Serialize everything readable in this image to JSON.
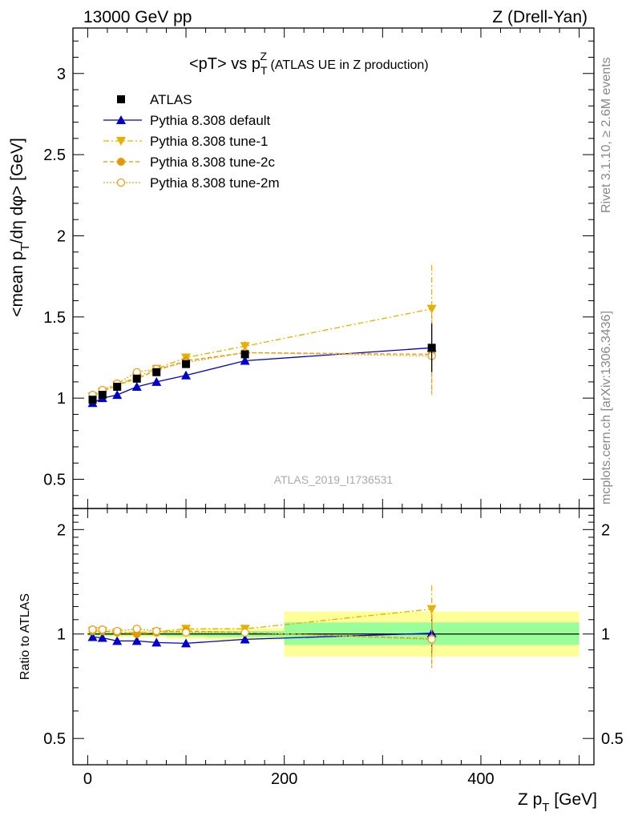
{
  "header": {
    "left": "13000 GeV pp",
    "right": "Z (Drell-Yan)"
  },
  "plot_title": {
    "main": "<pT> vs p",
    "sup": "Z",
    "sub": "T",
    "suffix": " (ATLAS UE in Z production)"
  },
  "side_labels": {
    "rivet": "Rivet 3.1.10, ≥ 2.6M events",
    "mcplots": "mcplots.cern.ch [arXiv:1306.3436]"
  },
  "watermark": "ATLAS_2019_I1736531",
  "axes": {
    "ylabel_main": "<mean p_T/dη dφ> [GeV]",
    "ylabel_main_parts": {
      "a": "<mean p",
      "sub": "T",
      "b": "/dη dφ> [GeV]"
    },
    "ylabel_ratio": "Ratio to ATLAS",
    "xlabel": "Z p_T [GeV]",
    "xlabel_parts": {
      "a": "Z p",
      "sub": "T",
      "b": " [GeV]"
    }
  },
  "colors": {
    "atlas": "#000000",
    "default": "#0000cc",
    "tune1": "#e6b000",
    "tune2c": "#e09a00",
    "tune2m": "#e8a020",
    "band_outer": "#ffff99",
    "band_inner": "#99ff99"
  },
  "chart_data": [
    {
      "type": "line",
      "panel": "main",
      "xlim": [
        -15,
        515
      ],
      "ylim": [
        0.32,
        3.28
      ],
      "log_y": false,
      "yticks": [
        0.5,
        1,
        1.5,
        2,
        2.5,
        3
      ],
      "ytick_labels": [
        "0.5",
        "1",
        "1.5",
        "2",
        "2.5",
        "3"
      ],
      "legend_position": "top-left",
      "series": [
        {
          "name": "ATLAS",
          "style": "square",
          "x": [
            5,
            15,
            30,
            50,
            70,
            100,
            160,
            350
          ],
          "y": [
            0.99,
            1.02,
            1.07,
            1.12,
            1.16,
            1.21,
            1.27,
            1.31
          ],
          "yerr": [
            0.01,
            0.01,
            0.01,
            0.01,
            0.01,
            0.01,
            0.02,
            0.15
          ]
        },
        {
          "name": "Pythia 8.308 default",
          "style": "triangle-up-solid",
          "x": [
            5,
            15,
            30,
            50,
            70,
            100,
            160,
            350
          ],
          "y": [
            0.97,
            1.0,
            1.02,
            1.07,
            1.1,
            1.14,
            1.23,
            1.31
          ],
          "yerr": [
            0.01,
            0.01,
            0.01,
            0.01,
            0.01,
            0.01,
            0.02,
            0.15
          ]
        },
        {
          "name": "Pythia 8.308 tune-1",
          "style": "triangle-down-dashdot",
          "x": [
            5,
            15,
            30,
            50,
            70,
            100,
            160,
            350
          ],
          "y": [
            1.01,
            1.04,
            1.08,
            1.13,
            1.18,
            1.25,
            1.32,
            1.55
          ],
          "yerr": [
            0.01,
            0.01,
            0.01,
            0.01,
            0.01,
            0.02,
            0.03,
            0.27
          ]
        },
        {
          "name": "Pythia 8.308 tune-2c",
          "style": "circle-solid-dashed",
          "x": [
            5,
            15,
            30,
            50,
            70,
            100,
            160,
            350
          ],
          "y": [
            1.01,
            1.04,
            1.08,
            1.12,
            1.17,
            1.23,
            1.28,
            1.27
          ],
          "yerr": [
            0.01,
            0.01,
            0.01,
            0.01,
            0.01,
            0.02,
            0.02,
            0.24
          ]
        },
        {
          "name": "Pythia 8.308 tune-2m",
          "style": "circle-open-dotted",
          "x": [
            5,
            15,
            30,
            50,
            70,
            100,
            160,
            350
          ],
          "y": [
            1.02,
            1.05,
            1.09,
            1.16,
            1.18,
            1.22,
            1.28,
            1.26
          ],
          "yerr": [
            0.01,
            0.01,
            0.01,
            0.01,
            0.01,
            0.02,
            0.02,
            0.24
          ]
        }
      ]
    },
    {
      "type": "line",
      "panel": "ratio",
      "xlim": [
        -15,
        515
      ],
      "ylim": [
        0.42,
        2.3
      ],
      "log_y": true,
      "yticks": [
        0.5,
        1,
        2
      ],
      "ytick_labels": [
        "0.5",
        "1",
        "2"
      ],
      "xticks": [
        0,
        200,
        400
      ],
      "xtick_labels": [
        "0",
        "200",
        "400"
      ],
      "bands": [
        {
          "x0": 0,
          "x1": 10,
          "outer": [
            0.98,
            1.02
          ],
          "inner": [
            0.99,
            1.01
          ]
        },
        {
          "x0": 10,
          "x1": 20,
          "outer": [
            0.98,
            1.02
          ],
          "inner": [
            0.99,
            1.01
          ]
        },
        {
          "x0": 20,
          "x1": 40,
          "outer": [
            0.98,
            1.02
          ],
          "inner": [
            0.99,
            1.01
          ]
        },
        {
          "x0": 40,
          "x1": 60,
          "outer": [
            0.98,
            1.02
          ],
          "inner": [
            0.99,
            1.01
          ]
        },
        {
          "x0": 60,
          "x1": 80,
          "outer": [
            0.98,
            1.02
          ],
          "inner": [
            0.99,
            1.01
          ]
        },
        {
          "x0": 80,
          "x1": 120,
          "outer": [
            0.97,
            1.03
          ],
          "inner": [
            0.985,
            1.015
          ]
        },
        {
          "x0": 120,
          "x1": 200,
          "outer": [
            0.96,
            1.04
          ],
          "inner": [
            0.98,
            1.02
          ]
        },
        {
          "x0": 200,
          "x1": 500,
          "outer": [
            0.86,
            1.16
          ],
          "inner": [
            0.93,
            1.08
          ]
        }
      ],
      "series": [
        {
          "name": "Pythia 8.308 default",
          "x": [
            5,
            15,
            30,
            50,
            70,
            100,
            160,
            350
          ],
          "y": [
            0.98,
            0.975,
            0.955,
            0.955,
            0.945,
            0.94,
            0.965,
            1.005
          ],
          "yerr": [
            0.01,
            0.01,
            0.01,
            0.01,
            0.01,
            0.01,
            0.015,
            0.12
          ]
        },
        {
          "name": "Pythia 8.308 tune-1",
          "x": [
            5,
            15,
            30,
            50,
            70,
            100,
            160,
            350
          ],
          "y": [
            1.02,
            1.02,
            1.01,
            1.01,
            1.015,
            1.035,
            1.035,
            1.18
          ],
          "yerr": [
            0.01,
            0.01,
            0.01,
            0.01,
            0.01,
            0.015,
            0.02,
            0.2
          ]
        },
        {
          "name": "Pythia 8.308 tune-2c",
          "x": [
            5,
            15,
            30,
            50,
            70,
            100,
            160,
            350
          ],
          "y": [
            1.02,
            1.02,
            1.01,
            1.0,
            1.01,
            1.02,
            1.01,
            0.97
          ],
          "yerr": [
            0.01,
            0.01,
            0.01,
            0.01,
            0.01,
            0.015,
            0.015,
            0.17
          ]
        },
        {
          "name": "Pythia 8.308 tune-2m",
          "x": [
            5,
            15,
            30,
            50,
            70,
            100,
            160,
            350
          ],
          "y": [
            1.03,
            1.03,
            1.02,
            1.035,
            1.02,
            1.01,
            1.01,
            0.965
          ],
          "yerr": [
            0.01,
            0.01,
            0.01,
            0.01,
            0.01,
            0.015,
            0.015,
            0.17
          ]
        }
      ]
    }
  ]
}
